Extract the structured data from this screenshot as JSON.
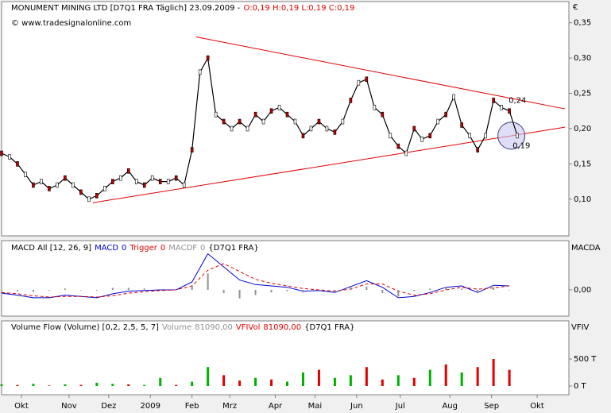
{
  "chart_data": [
    {
      "type": "line",
      "title": "MONUMENT MINING LTD [D7Q1 FRA  Täglich] 23.09.2009 -",
      "ohlc": "O:0,19 H:0,19 L:0,19 C:0,19",
      "ohlc_color": "#e00000",
      "subtitle": "© www.tradesignalonline.com",
      "unit": "€",
      "color": "#000000",
      "x": [
        0,
        4,
        8,
        12,
        16,
        20,
        24,
        28,
        32,
        36,
        40,
        44,
        48,
        52,
        56,
        60,
        64,
        68,
        72,
        76,
        80,
        84,
        88,
        92,
        96,
        100,
        104,
        108,
        112,
        116,
        120,
        124,
        128,
        132,
        136,
        140,
        144,
        148,
        152,
        156,
        160,
        164,
        168,
        172,
        176,
        180,
        184,
        188,
        192,
        196,
        200,
        204,
        208,
        212,
        216,
        220,
        224,
        228,
        232,
        236,
        240,
        244,
        248,
        252,
        256,
        260
      ],
      "values": [
        0.165,
        0.16,
        0.15,
        0.135,
        0.12,
        0.125,
        0.115,
        0.12,
        0.13,
        0.12,
        0.11,
        0.1,
        0.105,
        0.115,
        0.125,
        0.13,
        0.14,
        0.125,
        0.12,
        0.13,
        0.125,
        0.125,
        0.13,
        0.12,
        0.17,
        0.28,
        0.3,
        0.22,
        0.21,
        0.2,
        0.21,
        0.2,
        0.22,
        0.21,
        0.225,
        0.23,
        0.22,
        0.21,
        0.19,
        0.2,
        0.21,
        0.2,
        0.195,
        0.21,
        0.24,
        0.265,
        0.27,
        0.23,
        0.22,
        0.19,
        0.175,
        0.165,
        0.2,
        0.185,
        0.19,
        0.21,
        0.22,
        0.245,
        0.205,
        0.19,
        0.17,
        0.19,
        0.24,
        0.23,
        0.225,
        0.19
      ],
      "xlim": [
        0,
        286
      ],
      "xticks": [
        {
          "value": 10,
          "label": "Okt"
        },
        {
          "value": 34,
          "label": "Nov"
        },
        {
          "value": 54,
          "label": "Dez"
        },
        {
          "value": 75,
          "label": "2009"
        },
        {
          "value": 96,
          "label": "Feb"
        },
        {
          "value": 115,
          "label": "Mrz"
        },
        {
          "value": 138,
          "label": "Apr"
        },
        {
          "value": 158,
          "label": "Mai"
        },
        {
          "value": 179,
          "label": "Jun"
        },
        {
          "value": 201,
          "label": "Jul"
        },
        {
          "value": 226,
          "label": "Aug"
        },
        {
          "value": 247,
          "label": "Sep"
        },
        {
          "value": 270,
          "label": "Okt"
        }
      ],
      "ylim": [
        0.048,
        0.38
      ],
      "yticks": [
        {
          "value": 0.1,
          "label": "0,10"
        },
        {
          "value": 0.15,
          "label": "0,15"
        },
        {
          "value": 0.2,
          "label": "0,20"
        },
        {
          "value": 0.25,
          "label": "0,25"
        },
        {
          "value": 0.3,
          "label": "0,30"
        },
        {
          "value": 0.35,
          "label": "0,35"
        }
      ],
      "trend_lines": [
        {
          "color": "#e00000",
          "x": [
            98,
            284
          ],
          "y": [
            0.33,
            0.228
          ]
        },
        {
          "color": "#e00000",
          "x": [
            46,
            284
          ],
          "y": [
            0.095,
            0.202
          ]
        }
      ],
      "annotations": [
        {
          "text": "0,24",
          "x": 258,
          "y": 0.24,
          "color": "#e00000"
        },
        {
          "text": "0,19",
          "x": 260,
          "y": 0.176,
          "color": "#e00000"
        }
      ],
      "highlight": {
        "x": 257,
        "y": 0.19,
        "color": "#c8c8f0"
      }
    },
    {
      "type": "macd",
      "title": "MACD All [12, 26, 9]",
      "source": "{D7Q1 FRA}",
      "axis_label": "MACDA",
      "x": [
        0,
        8,
        16,
        24,
        32,
        40,
        48,
        56,
        64,
        72,
        80,
        88,
        96,
        104,
        112,
        120,
        128,
        136,
        144,
        152,
        160,
        168,
        176,
        184,
        192,
        200,
        208,
        216,
        224,
        232,
        240,
        248,
        256
      ],
      "series": [
        {
          "name": "MACD",
          "last": 0,
          "color": "#0000cc",
          "style": "line",
          "values": [
            -0.005,
            -0.008,
            -0.012,
            -0.012,
            -0.008,
            -0.01,
            -0.012,
            -0.006,
            -0.002,
            -0.001,
            0.0,
            0.0,
            0.012,
            0.055,
            0.035,
            0.015,
            0.008,
            0.006,
            0.004,
            -0.002,
            -0.001,
            -0.004,
            0.005,
            0.014,
            0.004,
            -0.012,
            -0.01,
            -0.004,
            0.004,
            0.006,
            -0.004,
            0.007,
            0.006
          ]
        },
        {
          "name": "Trigger",
          "last": 0,
          "color": "#e00000",
          "style": "dashed",
          "values": [
            -0.004,
            -0.006,
            -0.009,
            -0.011,
            -0.01,
            -0.01,
            -0.011,
            -0.009,
            -0.005,
            -0.003,
            -0.001,
            0,
            0.006,
            0.03,
            0.04,
            0.028,
            0.016,
            0.01,
            0.006,
            0.002,
            0,
            -0.002,
            0.001,
            0.009,
            0.009,
            -0.002,
            -0.008,
            -0.006,
            0,
            0.004,
            0.001,
            0.003,
            0.006
          ]
        },
        {
          "name": "MACDF",
          "last": 0,
          "color": "#909090",
          "style": "histogram",
          "values": [
            -0.001,
            -0.002,
            -0.003,
            -0.001,
            0.002,
            0,
            -0.001,
            0.003,
            0.003,
            0.002,
            0.001,
            0,
            0.006,
            0.025,
            -0.005,
            -0.013,
            -0.008,
            -0.004,
            -0.002,
            -0.004,
            -0.001,
            -0.002,
            0.004,
            0.005,
            -0.005,
            -0.01,
            -0.002,
            0.002,
            0.004,
            0.002,
            -0.005,
            0.004,
            0
          ]
        }
      ],
      "ylim": [
        -0.04,
        0.075
      ],
      "yticks": [
        {
          "value": 0,
          "label": "0,00"
        }
      ]
    },
    {
      "type": "bar",
      "title": "Volume Flow (Volume) [0,2, 2,5, 5, 7]",
      "source": "{D7Q1 FRA}",
      "axis_label": "VFIV",
      "x": [
        0,
        8,
        16,
        24,
        32,
        40,
        48,
        56,
        64,
        72,
        80,
        88,
        96,
        104,
        112,
        120,
        128,
        136,
        144,
        152,
        160,
        168,
        176,
        184,
        192,
        200,
        208,
        216,
        224,
        232,
        240,
        248,
        256
      ],
      "series": [
        {
          "name": "Volume",
          "last_label": "81090,00",
          "color": "#909090",
          "values": [
            30,
            20,
            40,
            10,
            30,
            20,
            60,
            40,
            30,
            20,
            150,
            20,
            80,
            350,
            200,
            100,
            150,
            120,
            80,
            250,
            300,
            150,
            200,
            350,
            120,
            200,
            150,
            300,
            400,
            250,
            350,
            500,
            300
          ],
          "bar_colors": [
            "#00b000",
            "#e00000",
            "#00b000",
            "#e00000",
            "#00b000",
            "#e00000",
            "#00b000",
            "#00b000",
            "#e00000",
            "#00b000",
            "#00b000",
            "#e00000",
            "#00b000",
            "#00b000",
            "#e00000",
            "#e00000",
            "#00b000",
            "#e00000",
            "#00b000",
            "#00b000",
            "#e00000",
            "#00b000",
            "#00b000",
            "#e00000",
            "#e00000",
            "#00b000",
            "#e00000",
            "#00b000",
            "#e00000",
            "#00b000",
            "#e00000",
            "#e00000",
            "#e00000"
          ]
        },
        {
          "name": "VFIVol",
          "last_label": "81090,00",
          "color": "#e00000"
        }
      ],
      "ylim": [
        -162,
        1206
      ],
      "yticks": [
        {
          "value": 0,
          "label": "0 T"
        },
        {
          "value": 500,
          "label": "500 T"
        }
      ]
    }
  ]
}
